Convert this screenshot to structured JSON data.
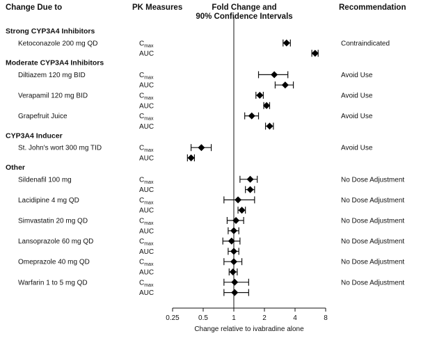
{
  "headers": {
    "change_due_to": "Change Due to",
    "pk_measures": "PK Measures",
    "fold_change_line1": "Fold Change and",
    "fold_change_line2": "90% Confidence Intervals",
    "recommendation": "Recommendation"
  },
  "chart_data": {
    "type": "forest",
    "xlabel": "Change relative to ivabradine alone",
    "x_scale": "log2",
    "xlim": [
      0.25,
      8
    ],
    "x_ticks": [
      "0.25",
      "0.5",
      "1",
      "2",
      "4",
      "8"
    ],
    "reference_line": 1,
    "groups": [
      {
        "name": "Strong CYP3A4 Inhibitors",
        "drugs": [
          {
            "name": "Ketoconazole 200 mg QD",
            "recommendation": "Contraindicated",
            "measures": [
              {
                "measure": "Cmax",
                "estimate": 3.3,
                "ci": [
                  3.05,
                  3.6
                ]
              },
              {
                "measure": "AUC",
                "estimate": 6.3,
                "ci": [
                  5.85,
                  6.75
                ]
              }
            ]
          }
        ]
      },
      {
        "name": "Moderate CYP3A4 Inhibitors",
        "drugs": [
          {
            "name": "Diltiazem 120 mg BID",
            "recommendation": "Avoid Use",
            "measures": [
              {
                "measure": "Cmax",
                "estimate": 2.5,
                "ci": [
                  1.75,
                  3.4
                ]
              },
              {
                "measure": "AUC",
                "estimate": 3.2,
                "ci": [
                  2.55,
                  3.85
                ]
              }
            ]
          },
          {
            "name": "Verapamil 120 mg BID",
            "recommendation": "Avoid Use",
            "measures": [
              {
                "measure": "Cmax",
                "estimate": 1.8,
                "ci": [
                  1.65,
                  1.95
                ]
              },
              {
                "measure": "AUC",
                "estimate": 2.1,
                "ci": [
                  1.97,
                  2.25
                ]
              }
            ]
          },
          {
            "name": "Grapefruit Juice",
            "recommendation": "Avoid Use",
            "measures": [
              {
                "measure": "Cmax",
                "estimate": 1.5,
                "ci": [
                  1.28,
                  1.75
                ]
              },
              {
                "measure": "AUC",
                "estimate": 2.25,
                "ci": [
                  2.05,
                  2.45
                ]
              }
            ]
          }
        ]
      },
      {
        "name": "CYP3A4 Inducer",
        "drugs": [
          {
            "name": "St. John's wort 300 mg TID",
            "recommendation": "Avoid Use",
            "measures": [
              {
                "measure": "Cmax",
                "estimate": 0.48,
                "ci": [
                  0.38,
                  0.6
                ]
              },
              {
                "measure": "AUC",
                "estimate": 0.38,
                "ci": [
                  0.35,
                  0.41
                ]
              }
            ]
          }
        ]
      },
      {
        "name": "Other",
        "drugs": [
          {
            "name": "Sildenafil 100 mg",
            "recommendation": "No Dose Adjustment",
            "measures": [
              {
                "measure": "Cmax",
                "estimate": 1.45,
                "ci": [
                  1.15,
                  1.7
                ]
              },
              {
                "measure": "AUC",
                "estimate": 1.45,
                "ci": [
                  1.3,
                  1.6
                ]
              }
            ]
          },
          {
            "name": "Lacidipine 4 mg QD",
            "recommendation": "No Dose Adjustment",
            "measures": [
              {
                "measure": "Cmax",
                "estimate": 1.1,
                "ci": [
                  0.8,
                  1.6
                ]
              },
              {
                "measure": "AUC",
                "estimate": 1.2,
                "ci": [
                  1.1,
                  1.3
                ]
              }
            ]
          },
          {
            "name": "Simvastatin 20 mg QD",
            "recommendation": "No Dose Adjustment",
            "measures": [
              {
                "measure": "Cmax",
                "estimate": 1.05,
                "ci": [
                  0.86,
                  1.25
                ]
              },
              {
                "measure": "AUC",
                "estimate": 1.0,
                "ci": [
                  0.88,
                  1.12
                ]
              }
            ]
          },
          {
            "name": "Lansoprazole 60 mg QD",
            "recommendation": "No Dose Adjustment",
            "measures": [
              {
                "measure": "Cmax",
                "estimate": 0.95,
                "ci": [
                  0.78,
                  1.15
                ]
              },
              {
                "measure": "AUC",
                "estimate": 1.0,
                "ci": [
                  0.88,
                  1.12
                ]
              }
            ]
          },
          {
            "name": "Omeprazole 40 mg QD",
            "recommendation": "No Dose Adjustment",
            "measures": [
              {
                "measure": "Cmax",
                "estimate": 1.0,
                "ci": [
                  0.8,
                  1.2
                ]
              },
              {
                "measure": "AUC",
                "estimate": 0.98,
                "ci": [
                  0.9,
                  1.08
                ]
              }
            ]
          },
          {
            "name": "Warfarin 1 to 5 mg QD",
            "recommendation": "No Dose Adjustment",
            "measures": [
              {
                "measure": "Cmax",
                "estimate": 1.02,
                "ci": [
                  0.8,
                  1.4
                ]
              },
              {
                "measure": "AUC",
                "estimate": 1.02,
                "ci": [
                  0.8,
                  1.4
                ]
              }
            ]
          }
        ]
      }
    ]
  }
}
